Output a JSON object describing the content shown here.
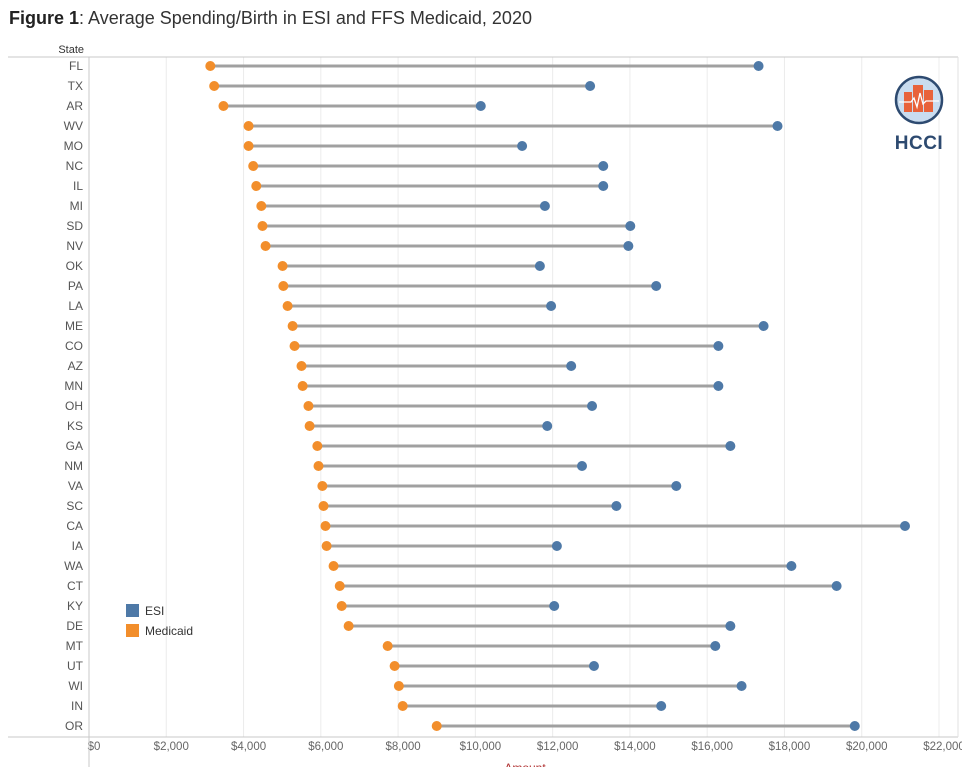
{
  "title_prefix": "Figure 1",
  "title_rest": ": Average Spending/Birth in ESI and FFS Medicaid, 2020",
  "logo": {
    "text": "HCCI",
    "icon": "hcci-logo-icon"
  },
  "chart_data": {
    "type": "dumbbell",
    "title": "Figure 1: Average Spending/Birth in ESI and FFS Medicaid, 2020",
    "ylabel": "State",
    "xlabel": "Amount",
    "xlim": [
      0,
      22000
    ],
    "xticks": [
      "$0",
      "$2,000",
      "$4,000",
      "$6,000",
      "$8,000",
      "$10,000",
      "$12,000",
      "$14,000",
      "$16,000",
      "$18,000",
      "$20,000",
      "$22,000"
    ],
    "grid": "vertical",
    "legend_position": "bottom-left",
    "colors": {
      "ESI": "#4e79a7",
      "Medicaid": "#f28e2b",
      "connector": "#a0a0a0"
    },
    "categories": [
      "FL",
      "TX",
      "AR",
      "WV",
      "MO",
      "NC",
      "IL",
      "MI",
      "SD",
      "NV",
      "OK",
      "PA",
      "LA",
      "ME",
      "CO",
      "AZ",
      "MN",
      "OH",
      "KS",
      "GA",
      "NM",
      "VA",
      "SC",
      "CA",
      "IA",
      "WA",
      "CT",
      "KY",
      "DE",
      "MT",
      "UT",
      "WI",
      "IN",
      "OR"
    ],
    "series": [
      {
        "name": "ESI",
        "values": [
          17330,
          12970,
          10140,
          17820,
          11210,
          13310,
          13310,
          11800,
          14010,
          13960,
          11670,
          14680,
          11960,
          17460,
          16290,
          12480,
          16290,
          13020,
          11860,
          16600,
          12760,
          15200,
          13650,
          21120,
          12110,
          18180,
          19350,
          12040,
          16600,
          16210,
          13070,
          16890,
          14810,
          19820
        ]
      },
      {
        "name": "Medicaid",
        "values": [
          3140,
          3240,
          3480,
          4130,
          4130,
          4250,
          4330,
          4460,
          4490,
          4570,
          5010,
          5030,
          5140,
          5270,
          5320,
          5500,
          5530,
          5680,
          5710,
          5910,
          5940,
          6040,
          6070,
          6120,
          6150,
          6330,
          6490,
          6540,
          6720,
          7730,
          7910,
          8020,
          8120,
          9000
        ]
      }
    ]
  }
}
